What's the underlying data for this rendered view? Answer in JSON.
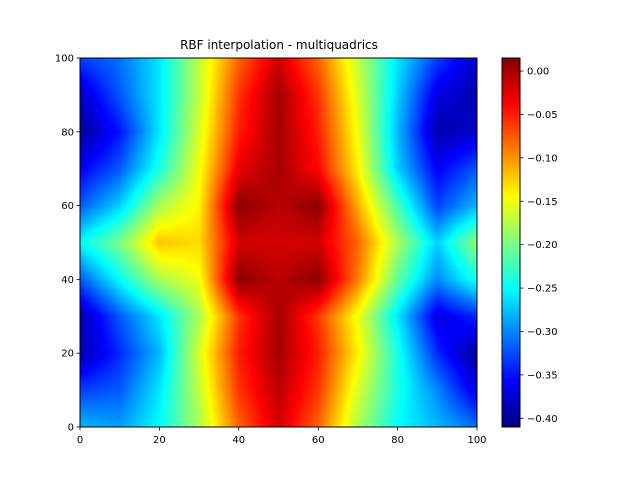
{
  "chart_data": {
    "type": "heatmap",
    "title": "RBF interpolation - multiquadrics",
    "xlabel": "",
    "ylabel": "",
    "xlim": [
      0,
      100
    ],
    "ylim": [
      0,
      100
    ],
    "x_ticks": [
      0,
      20,
      40,
      60,
      80,
      100
    ],
    "y_ticks": [
      0,
      20,
      40,
      60,
      80,
      100
    ],
    "x_tick_labels": [
      "0",
      "20",
      "40",
      "60",
      "80",
      "100"
    ],
    "y_tick_labels": [
      "0",
      "20",
      "40",
      "60",
      "80",
      "100"
    ],
    "colormap": "jet",
    "grid": false,
    "colorbar": {
      "placement": "right",
      "vmin": -0.41,
      "vmax": 0.015,
      "ticks": [
        0.0,
        -0.05,
        -0.1,
        -0.15,
        -0.2,
        -0.25,
        -0.3,
        -0.35,
        -0.4
      ],
      "tick_labels": [
        "0.00",
        "−0.05",
        "−0.10",
        "−0.15",
        "−0.20",
        "−0.25",
        "−0.30",
        "−0.35",
        "−0.40"
      ]
    },
    "x_grid": [
      0,
      10,
      20,
      30,
      40,
      50,
      60,
      70,
      80,
      90,
      100
    ],
    "y_grid": [
      100,
      90,
      80,
      70,
      60,
      50,
      40,
      30,
      20,
      10,
      0
    ],
    "z": [
      [
        -0.33,
        -0.31,
        -0.26,
        -0.17,
        -0.08,
        -0.02,
        -0.08,
        -0.17,
        -0.26,
        -0.33,
        -0.38
      ],
      [
        -0.38,
        -0.32,
        -0.26,
        -0.17,
        -0.06,
        0.0,
        -0.06,
        -0.16,
        -0.27,
        -0.37,
        -0.39
      ],
      [
        -0.4,
        -0.35,
        -0.26,
        -0.16,
        -0.05,
        0.0,
        -0.05,
        -0.15,
        -0.28,
        -0.39,
        -0.38
      ],
      [
        -0.36,
        -0.32,
        -0.24,
        -0.15,
        -0.03,
        0.0,
        -0.04,
        -0.14,
        -0.27,
        -0.36,
        -0.32
      ],
      [
        -0.32,
        -0.27,
        -0.18,
        -0.14,
        0.01,
        -0.01,
        0.01,
        -0.11,
        -0.22,
        -0.33,
        -0.28
      ],
      [
        -0.25,
        -0.2,
        -0.12,
        -0.13,
        -0.02,
        -0.02,
        -0.02,
        -0.08,
        -0.18,
        -0.27,
        -0.19
      ],
      [
        -0.32,
        -0.25,
        -0.18,
        -0.15,
        0.01,
        -0.01,
        0.01,
        -0.09,
        -0.21,
        -0.3,
        -0.24
      ],
      [
        -0.39,
        -0.32,
        -0.26,
        -0.18,
        -0.06,
        0.0,
        -0.06,
        -0.15,
        -0.26,
        -0.37,
        -0.34
      ],
      [
        -0.39,
        -0.34,
        -0.28,
        -0.16,
        -0.05,
        0.0,
        -0.05,
        -0.14,
        -0.24,
        -0.34,
        -0.4
      ],
      [
        -0.33,
        -0.32,
        -0.26,
        -0.17,
        -0.06,
        -0.01,
        -0.06,
        -0.16,
        -0.24,
        -0.3,
        -0.37
      ],
      [
        -0.28,
        -0.29,
        -0.25,
        -0.18,
        -0.08,
        -0.02,
        -0.08,
        -0.18,
        -0.25,
        -0.28,
        -0.31
      ]
    ]
  }
}
